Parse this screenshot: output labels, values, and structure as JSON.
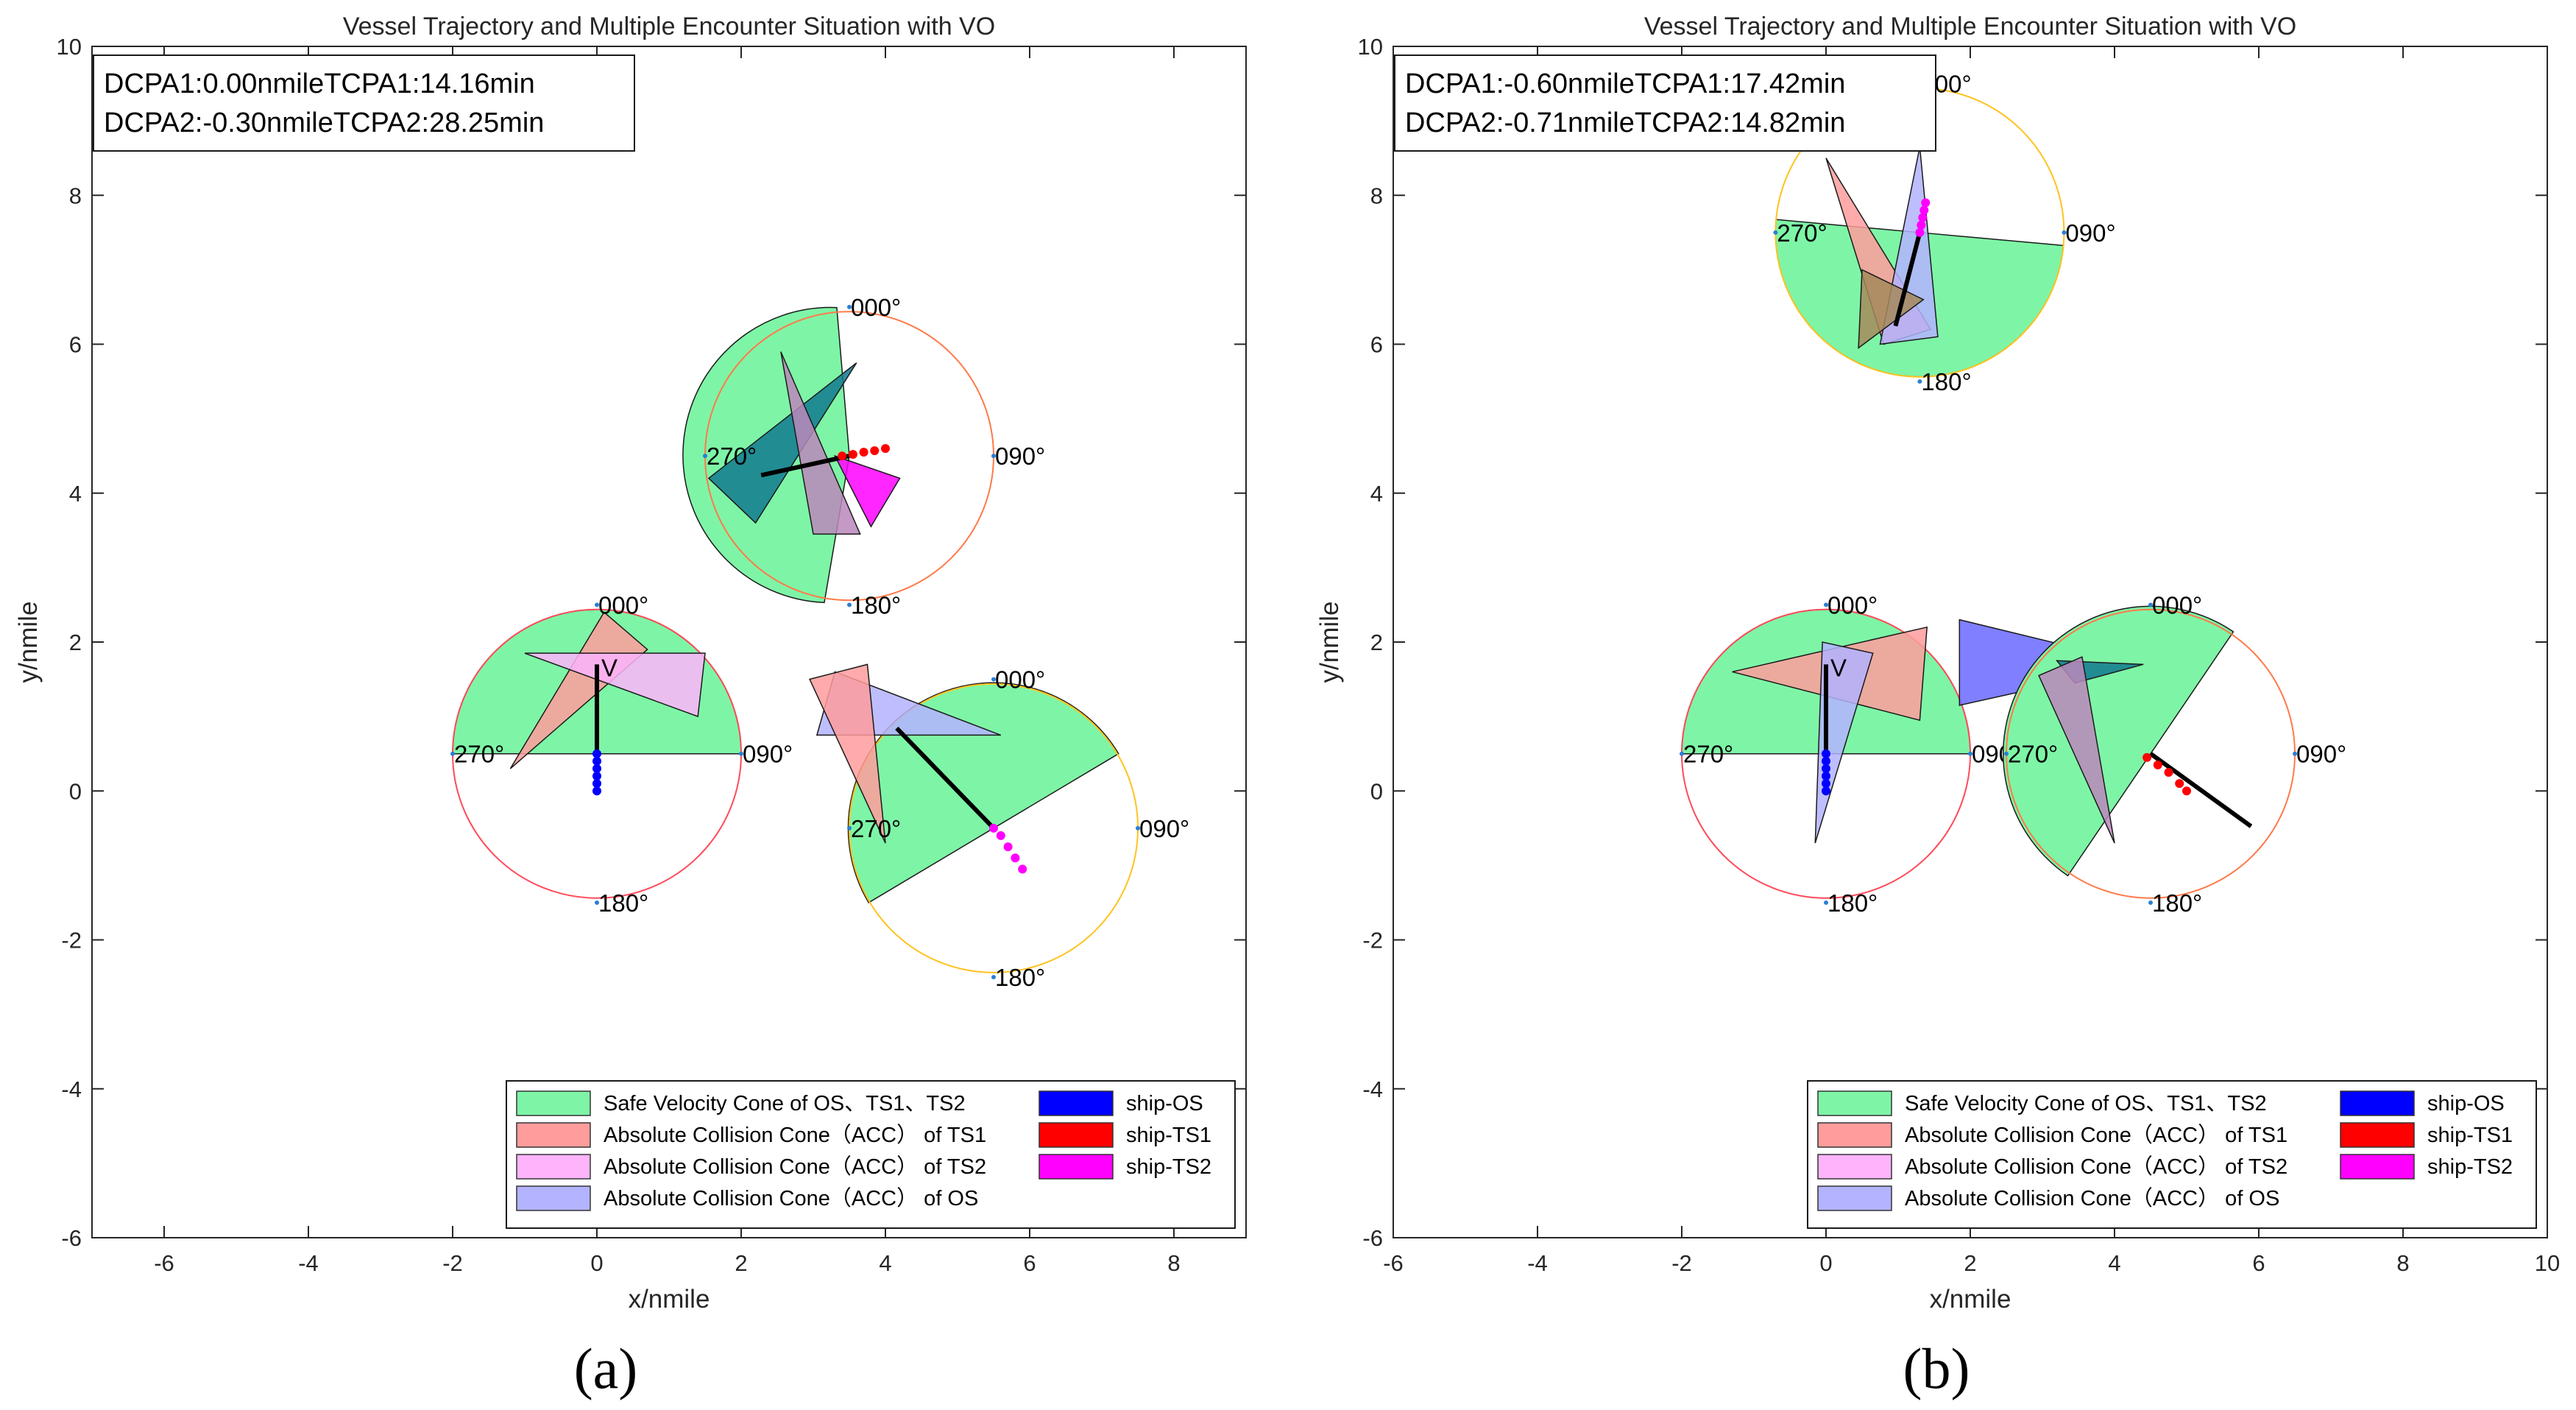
{
  "colors": {
    "safe": "#7ef5a6",
    "acc_ts1": "#ff9c9c",
    "acc_ts2": "#fdb4fb",
    "acc_os": "#b3b3ff",
    "ship_os": "#0000ff",
    "ship_ts1": "#ff0000",
    "ship_ts2": "#ff00ff",
    "ring_os": "#ff4a5a",
    "ring_ts1": "#ff7a4a",
    "ring_ts2": "#ffc21f",
    "dark_cone": "#12798f",
    "blue_cone": "#6868ff",
    "brown_cone": "#a58a5a",
    "mauve_cone": "#bb87bb"
  },
  "chart_data": [
    {
      "type": "scatter",
      "panel_label": "(a)",
      "title": "Vessel Trajectory and Multiple Encounter Situation with VO",
      "xlabel": "x/nmile",
      "ylabel": "y/nmile",
      "xlim": [
        -7,
        9
      ],
      "ylim": [
        -6,
        10
      ],
      "xticks": [
        -6,
        -4,
        -2,
        0,
        2,
        4,
        6,
        8
      ],
      "yticks": [
        -6,
        -4,
        -2,
        0,
        2,
        4,
        6,
        8,
        10
      ],
      "info_lines": [
        "DCPA1:0.00nmileTCPA1:14.16min",
        "DCPA2:-0.30nmileTCPA2:28.25min"
      ],
      "bearing_labels": [
        "000°",
        "090°",
        "180°",
        "270°"
      ],
      "velocity_label": "V",
      "ships": [
        {
          "name": "ship-OS",
          "center": [
            0,
            0.5
          ],
          "radius": 2,
          "heading_deg": 0,
          "speed": 1.2,
          "ring": "ring_os",
          "color": "ship_os",
          "track": [
            [
              0,
              0
            ],
            [
              0,
              0.1
            ],
            [
              0,
              0.2
            ],
            [
              0,
              0.3
            ],
            [
              0,
              0.4
            ],
            [
              0,
              0.5
            ]
          ],
          "safe_sector": [
            270,
            90
          ],
          "cones": [
            {
              "fill": "acc_ts1",
              "pts": [
                [
                  -1.2,
                  0.3
                ],
                [
                  0.1,
                  2.4
                ],
                [
                  0.7,
                  1.9
                ]
              ]
            },
            {
              "fill": "acc_ts2",
              "pts": [
                [
                  -1,
                  1.85
                ],
                [
                  1.5,
                  1.85
                ],
                [
                  1.4,
                  1
                ]
              ]
            }
          ]
        },
        {
          "name": "ship-TS1",
          "center": [
            3.5,
            4.5
          ],
          "radius": 2,
          "heading_deg": 258,
          "speed": 1.25,
          "ring": "ring_ts1",
          "color": "ship_ts1",
          "track": [
            [
              3.4,
              4.5
            ],
            [
              3.55,
              4.52
            ],
            [
              3.7,
              4.55
            ],
            [
              3.85,
              4.57
            ],
            [
              4.0,
              4.6
            ]
          ],
          "safe_sector": [
            190,
            355
          ],
          "cones": [
            {
              "fill": "dark_cone",
              "pts": [
                [
                  1.55,
                  4.2
                ],
                [
                  2.2,
                  3.6
                ],
                [
                  3.6,
                  5.75
                ]
              ]
            },
            {
              "fill": "mauve_cone",
              "pts": [
                [
                  2.55,
                  5.9
                ],
                [
                  3.0,
                  3.45
                ],
                [
                  3.65,
                  3.45
                ]
              ]
            },
            {
              "fill": "ship_ts2",
              "pts": [
                [
                  3.3,
                  4.5
                ],
                [
                  4.2,
                  4.2
                ],
                [
                  3.8,
                  3.55
                ]
              ]
            }
          ]
        },
        {
          "name": "ship-TS2",
          "center": [
            5.5,
            -0.5
          ],
          "radius": 2,
          "heading_deg": 315,
          "speed": 1.9,
          "ring": "ring_ts2",
          "color": "ship_ts2",
          "track": [
            [
              5.5,
              -0.5
            ],
            [
              5.6,
              -0.6
            ],
            [
              5.7,
              -0.75
            ],
            [
              5.8,
              -0.9
            ],
            [
              5.9,
              -1.05
            ]
          ],
          "safe_sector": [
            240,
            60
          ],
          "cones": [
            {
              "fill": "acc_os",
              "pts": [
                [
                  3.05,
                  0.75
                ],
                [
                  5.6,
                  0.75
                ],
                [
                  3.3,
                  1.6
                ]
              ]
            },
            {
              "fill": "acc_ts1",
              "pts": [
                [
                  2.95,
                  1.5
                ],
                [
                  4.0,
                  -0.7
                ],
                [
                  3.75,
                  1.7
                ]
              ]
            }
          ]
        }
      ],
      "legend": [
        {
          "label": "Safe Velocity Cone of OS、TS1、TS2",
          "color": "safe"
        },
        {
          "label": "Absolute Collision Cone（ACC） of TS1",
          "color": "acc_ts1"
        },
        {
          "label": "Absolute Collision Cone（ACC） of TS2",
          "color": "acc_ts2"
        },
        {
          "label": "Absolute Collision Cone（ACC） of OS",
          "color": "acc_os"
        },
        {
          "label": "ship-OS",
          "color": "ship_os"
        },
        {
          "label": "ship-TS1",
          "color": "ship_ts1"
        },
        {
          "label": "ship-TS2",
          "color": "ship_ts2"
        }
      ]
    },
    {
      "type": "scatter",
      "panel_label": "(b)",
      "title": "Vessel Trajectory and Multiple Encounter Situation with VO",
      "xlabel": "x/nmile",
      "ylabel": "y/nmile",
      "xlim": [
        -6,
        10
      ],
      "ylim": [
        -6,
        10
      ],
      "xticks": [
        -6,
        -4,
        -2,
        0,
        2,
        4,
        6,
        8,
        10
      ],
      "yticks": [
        -6,
        -4,
        -2,
        0,
        2,
        4,
        6,
        8,
        10
      ],
      "info_lines": [
        "DCPA1:-0.60nmileTCPA1:17.42min",
        "DCPA2:-0.71nmileTCPA2:14.82min"
      ],
      "bearing_labels": [
        "000°",
        "090°",
        "180°",
        "270°"
      ],
      "velocity_label": "V",
      "ships": [
        {
          "name": "ship-OS",
          "center": [
            0,
            0.5
          ],
          "radius": 2,
          "heading_deg": 0,
          "speed": 1.2,
          "ring": "ring_os",
          "color": "ship_os",
          "track": [
            [
              0,
              0
            ],
            [
              0,
              0.1
            ],
            [
              0,
              0.2
            ],
            [
              0,
              0.3
            ],
            [
              0,
              0.4
            ],
            [
              0,
              0.5
            ]
          ],
          "safe_sector": [
            270,
            90
          ],
          "cones": [
            {
              "fill": "acc_ts1",
              "pts": [
                [
                  -1.3,
                  1.6
                ],
                [
                  1.4,
                  2.2
                ],
                [
                  1.3,
                  0.95
                ]
              ]
            },
            {
              "fill": "acc_os",
              "pts": [
                [
                  -0.15,
                  -0.7
                ],
                [
                  -0.05,
                  2.0
                ],
                [
                  0.65,
                  1.85
                ]
              ]
            },
            {
              "fill": "blue_cone",
              "pts": [
                [
                  1.85,
                  2.3
                ],
                [
                  4.4,
                  1.7
                ],
                [
                  1.85,
                  1.15
                ]
              ]
            }
          ]
        },
        {
          "name": "ship-TS1",
          "center": [
            4.5,
            0.5
          ],
          "radius": 2,
          "heading_deg": 125,
          "speed": 1.7,
          "ring": "ring_ts1",
          "color": "ship_ts1",
          "track": [
            [
              4.45,
              0.45
            ],
            [
              4.6,
              0.35
            ],
            [
              4.75,
              0.25
            ],
            [
              4.9,
              0.1
            ],
            [
              5.0,
              0
            ]
          ],
          "safe_sector": [
            215,
            35
          ],
          "cones": [
            {
              "fill": "dark_cone",
              "pts": [
                [
                  3.2,
                  1.75
                ],
                [
                  4.4,
                  1.7
                ],
                [
                  3.45,
                  1.45
                ]
              ]
            },
            {
              "fill": "mauve_cone",
              "pts": [
                [
                  2.95,
                  1.55
                ],
                [
                  4.0,
                  -0.7
                ],
                [
                  3.55,
                  1.8
                ]
              ]
            }
          ]
        },
        {
          "name": "ship-TS2",
          "center": [
            1.3,
            7.5
          ],
          "radius": 2,
          "heading_deg": 195,
          "speed": 1.3,
          "ring": "ring_ts2",
          "color": "ship_ts2",
          "track": [
            [
              1.3,
              7.5
            ],
            [
              1.32,
              7.6
            ],
            [
              1.34,
              7.7
            ],
            [
              1.36,
              7.8
            ],
            [
              1.38,
              7.9
            ]
          ],
          "safe_sector": [
            95,
            275
          ],
          "cones": [
            {
              "fill": "acc_ts1",
              "pts": [
                [
                  0.0,
                  8.5
                ],
                [
                  1.45,
                  6.2
                ],
                [
                  0.8,
                  6.0
                ]
              ]
            },
            {
              "fill": "acc_os",
              "pts": [
                [
                  1.3,
                  8.65
                ],
                [
                  0.75,
                  6.0
                ],
                [
                  1.55,
                  6.1
                ]
              ]
            },
            {
              "fill": "brown_cone",
              "pts": [
                [
                  0.5,
                  7.0
                ],
                [
                  0.45,
                  5.95
                ],
                [
                  1.35,
                  6.6
                ]
              ]
            }
          ]
        }
      ],
      "legend": [
        {
          "label": "Safe Velocity Cone of OS、TS1、TS2",
          "color": "safe"
        },
        {
          "label": "Absolute Collision Cone（ACC） of TS1",
          "color": "acc_ts1"
        },
        {
          "label": "Absolute Collision Cone（ACC） of TS2",
          "color": "acc_ts2"
        },
        {
          "label": "Absolute Collision Cone（ACC） of OS",
          "color": "acc_os"
        },
        {
          "label": "ship-OS",
          "color": "ship_os"
        },
        {
          "label": "ship-TS1",
          "color": "ship_ts1"
        },
        {
          "label": "ship-TS2",
          "color": "ship_ts2"
        }
      ]
    }
  ]
}
